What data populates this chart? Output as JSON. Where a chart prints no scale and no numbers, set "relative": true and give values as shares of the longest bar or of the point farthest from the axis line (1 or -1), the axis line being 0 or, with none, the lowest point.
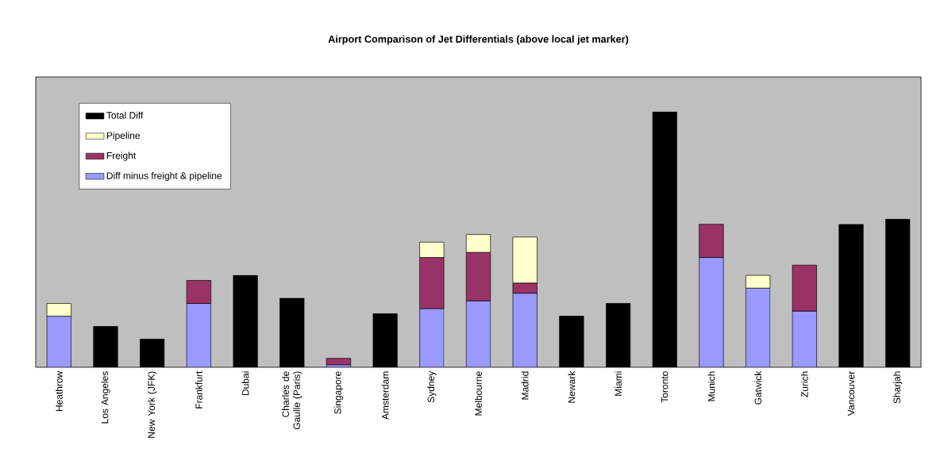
{
  "chart_data": {
    "type": "bar",
    "title": "Airport Comparison of Jet Differentials (above local jet marker)",
    "categories": [
      "Heathrow",
      "Los Angeles",
      "New York (JFK)",
      "Frankfurt",
      "Dubai",
      "Charles de Gaulle (Paris)",
      "Singapore",
      "Amsterdam",
      "Sydney",
      "Melbourne",
      "Madrid",
      "Newark",
      "Miami",
      "Toronto",
      "Munich",
      "Gatwick",
      "Zurich",
      "Vancouver",
      "Sharjah"
    ],
    "series": [
      {
        "name": "Diff minus freight & pipeline",
        "color": "#9999ff",
        "values": [
          0.2,
          null,
          null,
          0.25,
          null,
          null,
          0.01,
          null,
          0.23,
          0.26,
          0.29,
          null,
          null,
          null,
          0.43,
          0.31,
          0.22,
          null,
          null
        ]
      },
      {
        "name": "Freight",
        "color": "#993366",
        "values": [
          null,
          null,
          null,
          0.09,
          null,
          null,
          0.025,
          null,
          0.2,
          0.19,
          0.04,
          null,
          null,
          null,
          0.13,
          null,
          0.18,
          null,
          null
        ]
      },
      {
        "name": "Pipeline",
        "color": "#ffffcc",
        "values": [
          0.05,
          null,
          null,
          null,
          null,
          null,
          null,
          null,
          0.06,
          0.07,
          0.18,
          null,
          null,
          null,
          null,
          0.05,
          null,
          null,
          null
        ]
      },
      {
        "name": "Total Diff",
        "color": "#000000",
        "values": [
          null,
          0.16,
          0.11,
          null,
          0.36,
          0.27,
          null,
          0.21,
          null,
          null,
          null,
          0.2,
          0.25,
          1,
          null,
          null,
          null,
          0.56,
          0.58
        ]
      }
    ],
    "stacked": true,
    "relative": true,
    "legend": "top left"
  }
}
